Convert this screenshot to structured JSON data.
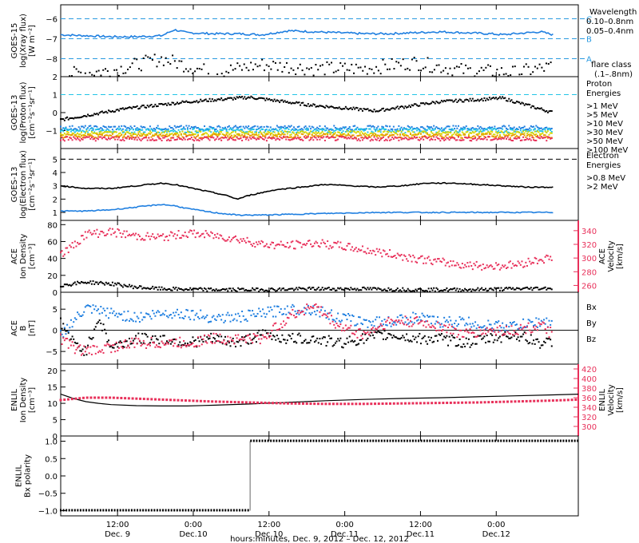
{
  "colors": {
    "black": "#000000",
    "blue": "#1f7fe0",
    "cyan": "#22c4e6",
    "green": "#1ec878",
    "yellow": "#d8d800",
    "orange": "#e89a00",
    "red": "#e8305a",
    "pink": "#e8305a",
    "dash_blue": "#2a9ae0"
  },
  "chart_data": [
    {
      "type": "line",
      "panel": "goes15_xray",
      "ylabel_lines": [
        "GOES-15",
        "log(Xray flux)",
        "[W m⁻²]"
      ],
      "ylim": [
        -8.9,
        -5.3
      ],
      "yticks": [
        -8,
        -7,
        -6
      ],
      "yticklabels": [
        "−8",
        "−7",
        "−6"
      ],
      "flare_levels": [
        {
          "y": -6,
          "label": "C"
        },
        {
          "y": -7,
          "label": "B"
        },
        {
          "y": -8,
          "label": "A"
        }
      ],
      "legend": {
        "title": "Wavelength",
        "entries": [
          "0.10–0.8nm",
          "0.05–0.4nm"
        ],
        "extra": [
          "flare class",
          "(.1–.8nm)"
        ]
      },
      "series": [
        {
          "name": "0.10–0.8nm",
          "color_key": "blue",
          "x": [
            0,
            4,
            8,
            12,
            16,
            18,
            20,
            24,
            28,
            32,
            36,
            40,
            44,
            48,
            52,
            56,
            60,
            64,
            68,
            70,
            72,
            76,
            78
          ],
          "y": [
            -6.8,
            -6.85,
            -6.9,
            -6.9,
            -6.85,
            -6.55,
            -6.7,
            -6.75,
            -6.75,
            -6.8,
            -6.6,
            -6.65,
            -6.7,
            -6.75,
            -6.75,
            -6.7,
            -6.65,
            -6.7,
            -6.75,
            -6.8,
            -6.75,
            -6.65,
            -6.8
          ]
        },
        {
          "name": "0.05–0.4nm",
          "color_key": "black",
          "x": [
            0,
            8,
            16,
            24,
            32,
            40,
            48,
            56,
            64,
            72,
            78
          ],
          "y": [
            -8.8,
            -8.6,
            -8.0,
            -8.7,
            -8.3,
            -8.5,
            -8.5,
            -8.2,
            -8.6,
            -8.7,
            -8.4
          ]
        }
      ]
    },
    {
      "type": "scatter",
      "panel": "goes13_proton",
      "ylabel_lines": [
        "GOES-13",
        "log(Proton flux)",
        "[cm⁻²s⁻¹sr⁻¹]"
      ],
      "ylim": [
        -2,
        2
      ],
      "yticks": [
        -1,
        0,
        1,
        2
      ],
      "yticklabels": [
        "−1",
        "0",
        "1",
        "2"
      ],
      "threshold": 1,
      "legend": {
        "title_lines": [
          "Proton",
          "Energies"
        ],
        "entries": [
          ">1 MeV",
          ">5 MeV",
          ">10 MeV",
          ">30 MeV",
          ">50 MeV",
          ">100 MeV"
        ]
      },
      "series": [
        {
          "name": ">1 MeV",
          "color_key": "black",
          "x": [
            0,
            10,
            20,
            30,
            40,
            50,
            60,
            70,
            78
          ],
          "y": [
            -0.4,
            0.2,
            0.6,
            0.85,
            0.4,
            0.1,
            0.6,
            0.8,
            0.0
          ]
        },
        {
          "name": ">5 MeV",
          "color_key": "blue",
          "x": [
            0,
            78
          ],
          "y": [
            -0.85,
            -0.85
          ]
        },
        {
          "name": ">10 MeV",
          "color_key": "cyan",
          "x": [
            0,
            78
          ],
          "y": [
            -1.0,
            -1.0
          ]
        },
        {
          "name": ">30 MeV",
          "color_key": "yellow",
          "x": [
            0,
            78
          ],
          "y": [
            -1.15,
            -1.15
          ]
        },
        {
          "name": ">50 MeV",
          "color_key": "orange",
          "x": [
            0,
            78
          ],
          "y": [
            -1.3,
            -1.3
          ]
        },
        {
          "name": ">100 MeV",
          "color_key": "red",
          "x": [
            0,
            78
          ],
          "y": [
            -1.45,
            -1.45
          ]
        }
      ]
    },
    {
      "type": "line",
      "panel": "goes13_electron",
      "ylabel_lines": [
        "GOES-13",
        "log(Electron flux)",
        "[cm⁻²s⁻¹sr⁻¹]"
      ],
      "ylim": [
        0.4,
        5.8
      ],
      "yticks": [
        1,
        2,
        3,
        4,
        5
      ],
      "yticklabels": [
        "1",
        "2",
        "3",
        "4",
        "5"
      ],
      "threshold": 5,
      "legend": {
        "title_lines": [
          "Electron",
          "Energies"
        ],
        "entries": [
          ">0.8 MeV",
          ">2 MeV"
        ]
      },
      "series": [
        {
          "name": ">0.8 MeV",
          "color_key": "black",
          "x": [
            0,
            4,
            8,
            12,
            16,
            18,
            22,
            26,
            28,
            30,
            34,
            38,
            42,
            46,
            50,
            54,
            58,
            62,
            66,
            70,
            74,
            78
          ],
          "y": [
            3.0,
            2.8,
            2.8,
            3.0,
            3.2,
            3.1,
            2.7,
            2.3,
            2.0,
            2.3,
            2.7,
            2.9,
            3.1,
            3.0,
            2.9,
            3.0,
            3.2,
            3.2,
            3.1,
            3.0,
            2.9,
            2.9
          ]
        },
        {
          "name": ">2 MeV",
          "color_key": "blue",
          "x": [
            0,
            4,
            8,
            12,
            16,
            18,
            20,
            24,
            28,
            32,
            40,
            50,
            60,
            70,
            78
          ],
          "y": [
            1.1,
            1.1,
            1.2,
            1.4,
            1.6,
            1.5,
            1.3,
            1.0,
            0.8,
            0.8,
            0.9,
            1.0,
            1.0,
            1.0,
            1.0
          ]
        }
      ]
    },
    {
      "type": "scatter",
      "panel": "ace_density",
      "ylabel_lines": [
        "ACE",
        "Ion Density",
        "[cm⁻³]"
      ],
      "ylim": [
        0,
        85
      ],
      "yticks": [
        0,
        20,
        40,
        60,
        80
      ],
      "yticklabels": [
        "0",
        "20",
        "40",
        "60",
        "80"
      ],
      "ylabel2_lines": [
        "ACE",
        "Velocity",
        "[km/s]"
      ],
      "y2lim": [
        250,
        355
      ],
      "y2ticks": [
        260,
        280,
        300,
        320,
        340
      ],
      "y2ticklabels": [
        "260",
        "280",
        "300",
        "320",
        "340"
      ],
      "series": [
        {
          "name": "Density",
          "color_key": "black",
          "x": [
            0,
            4,
            8,
            12,
            16,
            24,
            32,
            40,
            48,
            56,
            64,
            72,
            78
          ],
          "y": [
            8,
            12,
            10,
            6,
            4,
            3,
            3,
            4,
            4,
            3,
            3,
            4,
            5
          ]
        },
        {
          "name": "Velocity",
          "color_key": "pink",
          "x": [
            0,
            2,
            4,
            8,
            12,
            16,
            20,
            24,
            28,
            32,
            36,
            40,
            44,
            48,
            52,
            56,
            60,
            64,
            68,
            72,
            76,
            78
          ],
          "y": [
            305,
            318,
            335,
            338,
            332,
            330,
            336,
            333,
            328,
            320,
            318,
            322,
            318,
            312,
            306,
            300,
            294,
            290,
            288,
            290,
            298,
            300
          ]
        }
      ]
    },
    {
      "type": "line",
      "panel": "ace_b",
      "ylabel_lines": [
        "ACE",
        "B",
        "[nT]"
      ],
      "ylim": [
        -8,
        9
      ],
      "yticks": [
        -5,
        0,
        5
      ],
      "yticklabels": [
        "−5",
        "0",
        "5"
      ],
      "legend": {
        "entries": [
          "Bx",
          "By",
          "Bz"
        ]
      },
      "series": [
        {
          "name": "Bx",
          "color_key": "black",
          "x": [
            0,
            2,
            4,
            6,
            8,
            12,
            16,
            20,
            24,
            28,
            32,
            36,
            40,
            44,
            48,
            52,
            56,
            60,
            64,
            68,
            72,
            76,
            78
          ],
          "y": [
            2,
            -3,
            -5,
            3,
            -4,
            -2,
            -2,
            -3,
            -2,
            -3,
            -1,
            -2,
            -2,
            -3,
            -2,
            -1,
            -2,
            -2,
            -3,
            -2,
            -1,
            -3,
            -3
          ]
        },
        {
          "name": "By",
          "color_key": "blue",
          "x": [
            0,
            2,
            4,
            8,
            12,
            16,
            20,
            24,
            28,
            32,
            36,
            40,
            44,
            48,
            52,
            56,
            60,
            64,
            68,
            72,
            76,
            78
          ],
          "y": [
            -1,
            2,
            5,
            4,
            3,
            4,
            4,
            3,
            3,
            4,
            5,
            5,
            3,
            2,
            2,
            3,
            2,
            2,
            1,
            1,
            2,
            2
          ]
        },
        {
          "name": "Bz",
          "color_key": "pink",
          "x": [
            0,
            2,
            4,
            8,
            12,
            16,
            20,
            24,
            28,
            32,
            36,
            40,
            44,
            48,
            52,
            56,
            60,
            64,
            68,
            72,
            76,
            78
          ],
          "y": [
            -2,
            -4,
            -5,
            -4,
            -3,
            -3,
            -3,
            -2,
            -2,
            -2,
            3,
            6,
            1,
            -1,
            2,
            2,
            1,
            -1,
            0,
            0,
            1,
            -1
          ]
        }
      ]
    },
    {
      "type": "line",
      "panel": "enlil_density",
      "ylabel_lines": [
        "ENLIL",
        "Ion Density",
        "[cm⁻³]"
      ],
      "ylim": [
        0,
        22
      ],
      "yticks": [
        0,
        5,
        10,
        15,
        20
      ],
      "yticklabels": [
        "0",
        "5",
        "10",
        "15",
        "20"
      ],
      "ylabel2_lines": [
        "ENLIL",
        "Velocity",
        "[km/s]"
      ],
      "y2lim": [
        280,
        430
      ],
      "y2ticks": [
        300,
        320,
        340,
        360,
        380,
        400,
        420
      ],
      "y2ticklabels": [
        "300",
        "320",
        "340",
        "360",
        "380",
        "400",
        "420"
      ],
      "series": [
        {
          "name": "Density",
          "color_key": "black",
          "x": [
            0,
            2,
            4,
            6,
            8,
            12,
            16,
            20,
            24,
            30,
            36,
            42,
            48,
            54,
            60,
            66,
            72,
            78,
            82
          ],
          "y": [
            12.8,
            11.5,
            10.5,
            10.0,
            9.6,
            9.3,
            9.2,
            9.2,
            9.4,
            9.8,
            10.3,
            10.8,
            11.2,
            11.5,
            11.7,
            12.0,
            12.3,
            12.6,
            12.8
          ]
        },
        {
          "name": "Velocity",
          "color_key": "pink",
          "x": [
            0,
            4,
            8,
            12,
            16,
            20,
            24,
            30,
            36,
            42,
            48,
            54,
            60,
            66,
            72,
            78,
            82
          ],
          "y": [
            355,
            360,
            360,
            358,
            356,
            354,
            352,
            350,
            348,
            347,
            347,
            348,
            349,
            350,
            352,
            354,
            356
          ]
        }
      ]
    },
    {
      "type": "scatter",
      "panel": "enlil_polarity",
      "ylabel_lines": [
        "ENLIL",
        "Bx polarity"
      ],
      "ylim": [
        -1.15,
        1.15
      ],
      "yticks": [
        -1.0,
        -0.5,
        0.0,
        0.5,
        1.0
      ],
      "yticklabels": [
        "−1.0",
        "−0.5",
        "0.0",
        "0.5",
        "1.0"
      ],
      "series": [
        {
          "name": "Polarity",
          "color_key": "black",
          "x": [
            0,
            30,
            30.01,
            82
          ],
          "y": [
            -1,
            -1,
            1,
            1
          ]
        }
      ]
    }
  ],
  "xaxis": {
    "range_hours": [
      0,
      82
    ],
    "ticks": [
      {
        "h": 9,
        "time": "12:00",
        "date": "Dec. 9"
      },
      {
        "h": 21,
        "time": "0:00",
        "date": "Dec.10"
      },
      {
        "h": 33,
        "time": "12:00",
        "date": "Dec.10"
      },
      {
        "h": 45,
        "time": "0:00",
        "date": "Dec.11"
      },
      {
        "h": 57,
        "time": "12:00",
        "date": "Dec.11"
      },
      {
        "h": 69,
        "time": "0:00",
        "date": "Dec.12"
      }
    ],
    "label": "hours:minutes, Dec. 9, 2012 – Dec. 12, 2012"
  }
}
